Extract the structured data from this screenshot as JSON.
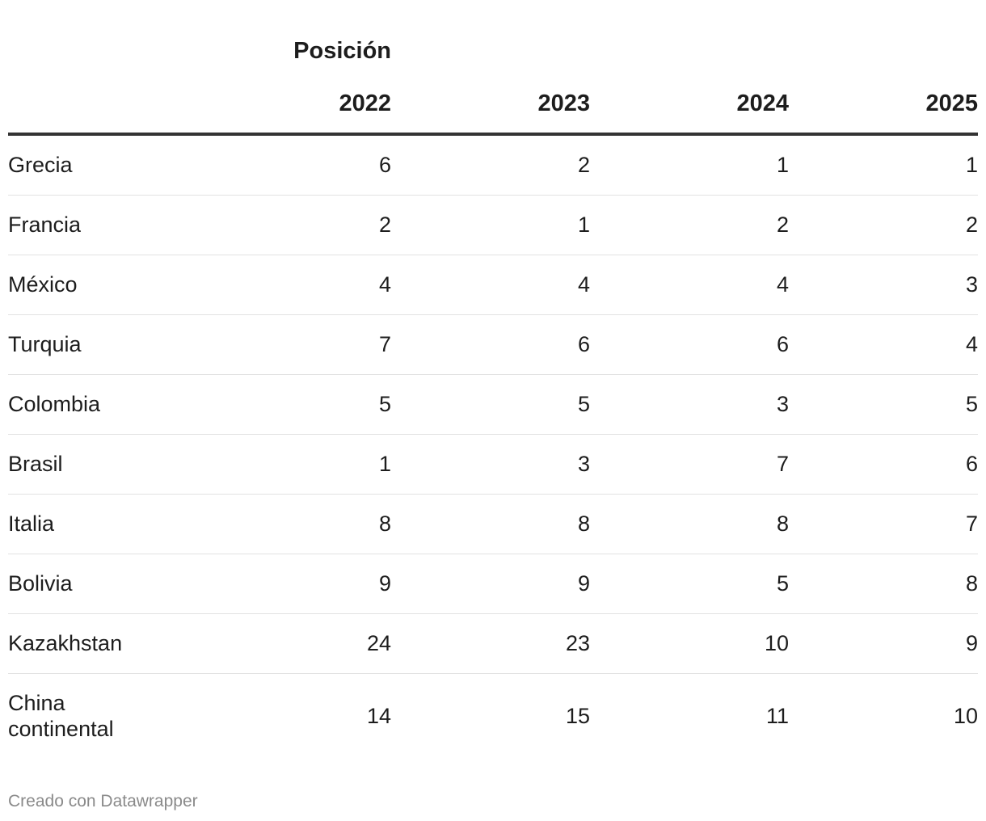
{
  "chart_data": {
    "type": "table",
    "column_group_header": "Posición",
    "columns": [
      "2022",
      "2023",
      "2024",
      "2025"
    ],
    "rows": [
      {
        "name": "Grecia",
        "values": [
          "6",
          "2",
          "1",
          "1"
        ]
      },
      {
        "name": "Francia",
        "values": [
          "2",
          "1",
          "2",
          "2"
        ]
      },
      {
        "name": "México",
        "values": [
          "4",
          "4",
          "4",
          "3"
        ]
      },
      {
        "name": "Turquia",
        "values": [
          "7",
          "6",
          "6",
          "4"
        ]
      },
      {
        "name": "Colombia",
        "values": [
          "5",
          "5",
          "3",
          "5"
        ]
      },
      {
        "name": "Brasil",
        "values": [
          "1",
          "3",
          "7",
          "6"
        ]
      },
      {
        "name": "Italia",
        "values": [
          "8",
          "8",
          "8",
          "7"
        ]
      },
      {
        "name": "Bolivia",
        "values": [
          "9",
          "9",
          "5",
          "8"
        ]
      },
      {
        "name": "Kazakhstan",
        "values": [
          "24",
          "23",
          "10",
          "9"
        ]
      },
      {
        "name": "China continental",
        "values": [
          "14",
          "15",
          "11",
          "10"
        ]
      }
    ]
  },
  "footer": {
    "credit": "Creado con Datawrapper"
  }
}
